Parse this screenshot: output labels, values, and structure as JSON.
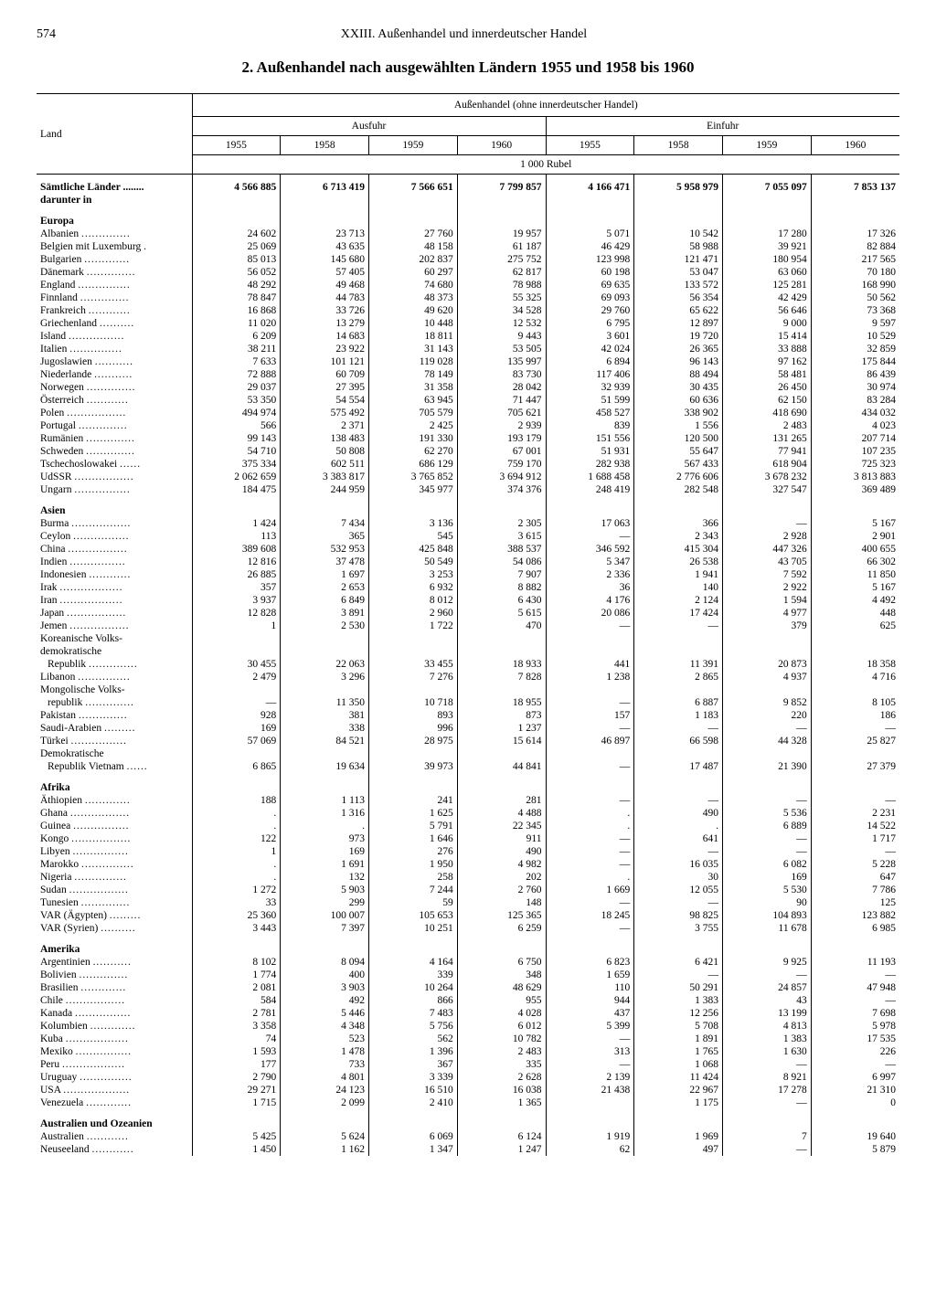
{
  "page_number": "574",
  "chapter": "XXIII. Außenhandel und innerdeutscher Handel",
  "title": "2. Außenhandel nach ausgewählten Ländern 1955 und 1958 bis 1960",
  "group_header": "Außenhandel (ohne innerdeutscher Handel)",
  "col_land": "Land",
  "col_ausfuhr": "Ausfuhr",
  "col_einfuhr": "Einfuhr",
  "years": [
    "1955",
    "1958",
    "1959",
    "1960"
  ],
  "unit": "1 000 Rubel",
  "total_label": "Sämtliche Länder",
  "darunter": "darunter in",
  "total": {
    "a": [
      "4 566 885",
      "6 713 419",
      "7 566 651",
      "7 799 857"
    ],
    "e": [
      "4 166 471",
      "5 958 979",
      "7 055 097",
      "7 853 137"
    ]
  },
  "sections": [
    {
      "name": "Europa",
      "rows": [
        {
          "l": "Albanien",
          "a": [
            "24 602",
            "23 713",
            "27 760",
            "19 957"
          ],
          "e": [
            "5 071",
            "10 542",
            "17 280",
            "17 326"
          ]
        },
        {
          "l": "Belgien mit Luxemburg",
          "a": [
            "25 069",
            "43 635",
            "48 158",
            "61 187"
          ],
          "e": [
            "46 429",
            "58 988",
            "39 921",
            "82 884"
          ]
        },
        {
          "l": "Bulgarien",
          "a": [
            "85 013",
            "145 680",
            "202 837",
            "275 752"
          ],
          "e": [
            "123 998",
            "121 471",
            "180 954",
            "217 565"
          ]
        },
        {
          "l": "Dänemark",
          "a": [
            "56 052",
            "57 405",
            "60 297",
            "62 817"
          ],
          "e": [
            "60 198",
            "53 047",
            "63 060",
            "70 180"
          ]
        },
        {
          "l": "England",
          "a": [
            "48 292",
            "49 468",
            "74 680",
            "78 988"
          ],
          "e": [
            "69 635",
            "133 572",
            "125 281",
            "168 990"
          ]
        },
        {
          "l": "Finnland",
          "a": [
            "78 847",
            "44 783",
            "48 373",
            "55 325"
          ],
          "e": [
            "69 093",
            "56 354",
            "42 429",
            "50 562"
          ]
        },
        {
          "l": "Frankreich",
          "a": [
            "16 868",
            "33 726",
            "49 620",
            "34 528"
          ],
          "e": [
            "29 760",
            "65 622",
            "56 646",
            "73 368"
          ]
        },
        {
          "l": "Griechenland",
          "a": [
            "11 020",
            "13 279",
            "10 448",
            "12 532"
          ],
          "e": [
            "6 795",
            "12 897",
            "9 000",
            "9 597"
          ]
        },
        {
          "l": "Island",
          "a": [
            "6 209",
            "14 683",
            "18 811",
            "9 443"
          ],
          "e": [
            "3 601",
            "19 720",
            "15 414",
            "10 529"
          ]
        },
        {
          "l": "Italien",
          "a": [
            "38 211",
            "23 922",
            "31 143",
            "53 505"
          ],
          "e": [
            "42 024",
            "26 365",
            "33 888",
            "32 859"
          ]
        },
        {
          "l": "Jugoslawien",
          "a": [
            "7 633",
            "101 121",
            "119 028",
            "135 997"
          ],
          "e": [
            "6 894",
            "96 143",
            "97 162",
            "175 844"
          ]
        },
        {
          "l": "Niederlande",
          "a": [
            "72 888",
            "60 709",
            "78 149",
            "83 730"
          ],
          "e": [
            "117 406",
            "88 494",
            "58 481",
            "86 439"
          ]
        },
        {
          "l": "Norwegen",
          "a": [
            "29 037",
            "27 395",
            "31 358",
            "28 042"
          ],
          "e": [
            "32 939",
            "30 435",
            "26 450",
            "30 974"
          ]
        },
        {
          "l": "Österreich",
          "a": [
            "53 350",
            "54 554",
            "63 945",
            "71 447"
          ],
          "e": [
            "51 599",
            "60 636",
            "62 150",
            "83 284"
          ]
        },
        {
          "l": "Polen",
          "a": [
            "494 974",
            "575 492",
            "705 579",
            "705 621"
          ],
          "e": [
            "458 527",
            "338 902",
            "418 690",
            "434 032"
          ]
        },
        {
          "l": "Portugal",
          "a": [
            "566",
            "2 371",
            "2 425",
            "2 939"
          ],
          "e": [
            "839",
            "1 556",
            "2 483",
            "4 023"
          ]
        },
        {
          "l": "Rumänien",
          "a": [
            "99 143",
            "138 483",
            "191 330",
            "193 179"
          ],
          "e": [
            "151 556",
            "120 500",
            "131 265",
            "207 714"
          ]
        },
        {
          "l": "Schweden",
          "a": [
            "54 710",
            "50 808",
            "62 270",
            "67 001"
          ],
          "e": [
            "51 931",
            "55 647",
            "77 941",
            "107 235"
          ]
        },
        {
          "l": "Tschechoslowakei",
          "a": [
            "375 334",
            "602 511",
            "686 129",
            "759 170"
          ],
          "e": [
            "282 938",
            "567 433",
            "618 904",
            "725 323"
          ]
        },
        {
          "l": "UdSSR",
          "a": [
            "2 062 659",
            "3 383 817",
            "3 765 852",
            "3 694 912"
          ],
          "e": [
            "1 688 458",
            "2 776 606",
            "3 678 232",
            "3 813 883"
          ]
        },
        {
          "l": "Ungarn",
          "a": [
            "184 475",
            "244 959",
            "345 977",
            "374 376"
          ],
          "e": [
            "248 419",
            "282 548",
            "327 547",
            "369 489"
          ]
        }
      ]
    },
    {
      "name": "Asien",
      "rows": [
        {
          "l": "Burma",
          "a": [
            "1 424",
            "7 434",
            "3 136",
            "2 305"
          ],
          "e": [
            "17 063",
            "366",
            "—",
            "5 167"
          ]
        },
        {
          "l": "Ceylon",
          "a": [
            "113",
            "365",
            "545",
            "3 615"
          ],
          "e": [
            "—",
            "2 343",
            "2 928",
            "2 901"
          ]
        },
        {
          "l": "China",
          "a": [
            "389 608",
            "532 953",
            "425 848",
            "388 537"
          ],
          "e": [
            "346 592",
            "415 304",
            "447 326",
            "400 655"
          ]
        },
        {
          "l": "Indien",
          "a": [
            "12 816",
            "37 478",
            "50 549",
            "54 086"
          ],
          "e": [
            "5 347",
            "26 538",
            "43 705",
            "66 302"
          ]
        },
        {
          "l": "Indonesien",
          "a": [
            "26 885",
            "1 697",
            "3 253",
            "7 907"
          ],
          "e": [
            "2 336",
            "1 941",
            "7 592",
            "11 850"
          ]
        },
        {
          "l": "Irak",
          "a": [
            "357",
            "2 653",
            "6 932",
            "8 882"
          ],
          "e": [
            "36",
            "140",
            "2 922",
            "5 167"
          ]
        },
        {
          "l": "Iran",
          "a": [
            "3 937",
            "6 849",
            "8 012",
            "6 430"
          ],
          "e": [
            "4 176",
            "2 124",
            "1 594",
            "4 492"
          ]
        },
        {
          "l": "Japan",
          "a": [
            "12 828",
            "3 891",
            "2 960",
            "5 615"
          ],
          "e": [
            "20 086",
            "17 424",
            "4 977",
            "448"
          ]
        },
        {
          "l": "Jemen",
          "a": [
            "1",
            "2 530",
            "1 722",
            "470"
          ],
          "e": [
            "—",
            "—",
            "379",
            "625"
          ]
        },
        {
          "l": "Koreanische Volks-",
          "cont": true
        },
        {
          "l": "demokratische",
          "cont": true
        },
        {
          "l": "Republik",
          "indent": true,
          "a": [
            "30 455",
            "22 063",
            "33 455",
            "18 933"
          ],
          "e": [
            "441",
            "11 391",
            "20 873",
            "18 358"
          ]
        },
        {
          "l": "Libanon",
          "a": [
            "2 479",
            "3 296",
            "7 276",
            "7 828"
          ],
          "e": [
            "1 238",
            "2 865",
            "4 937",
            "4 716"
          ]
        },
        {
          "l": "Mongolische Volks-",
          "cont": true
        },
        {
          "l": "republik",
          "indent": true,
          "a": [
            "—",
            "11 350",
            "10 718",
            "18 955"
          ],
          "e": [
            "—",
            "6 887",
            "9 852",
            "8 105"
          ]
        },
        {
          "l": "Pakistan",
          "a": [
            "928",
            "381",
            "893",
            "873"
          ],
          "e": [
            "157",
            "1 183",
            "220",
            "186"
          ]
        },
        {
          "l": "Saudi-Arabien",
          "a": [
            "169",
            "338",
            "996",
            "1 237"
          ],
          "e": [
            "—",
            "—",
            "—",
            "—"
          ]
        },
        {
          "l": "Türkei",
          "a": [
            "57 069",
            "84 521",
            "28 975",
            "15 614"
          ],
          "e": [
            "46 897",
            "66 598",
            "44 328",
            "25 827"
          ]
        },
        {
          "l": "Demokratische",
          "cont": true
        },
        {
          "l": "Republik Vietnam",
          "indent": true,
          "a": [
            "6 865",
            "19 634",
            "39 973",
            "44 841"
          ],
          "e": [
            "—",
            "17 487",
            "21 390",
            "27 379"
          ]
        }
      ]
    },
    {
      "name": "Afrika",
      "rows": [
        {
          "l": "Äthiopien",
          "a": [
            "188",
            "1 113",
            "241",
            "281"
          ],
          "e": [
            "—",
            "—",
            "—",
            "—"
          ]
        },
        {
          "l": "Ghana",
          "a": [
            ".",
            "1 316",
            "1 625",
            "4 488"
          ],
          "e": [
            ".",
            "490",
            "5 536",
            "2 231"
          ]
        },
        {
          "l": "Guinea",
          "a": [
            ".",
            ".",
            "5 791",
            "22 345"
          ],
          "e": [
            ".",
            ".",
            "6 889",
            "14 522"
          ]
        },
        {
          "l": "Kongo",
          "a": [
            "122",
            "973",
            "1 646",
            "911"
          ],
          "e": [
            "—",
            "641",
            "—",
            "1 717"
          ]
        },
        {
          "l": "Libyen",
          "a": [
            "1",
            "169",
            "276",
            "490"
          ],
          "e": [
            "—",
            "—",
            "—",
            "—"
          ]
        },
        {
          "l": "Marokko",
          "a": [
            ".",
            "1 691",
            "1 950",
            "4 982"
          ],
          "e": [
            "—",
            "16 035",
            "6 082",
            "5 228"
          ]
        },
        {
          "l": "Nigeria",
          "a": [
            ".",
            "132",
            "258",
            "202"
          ],
          "e": [
            ".",
            "30",
            "169",
            "647"
          ]
        },
        {
          "l": "Sudan",
          "a": [
            "1 272",
            "5 903",
            "7 244",
            "2 760"
          ],
          "e": [
            "1 669",
            "12 055",
            "5 530",
            "7 786"
          ]
        },
        {
          "l": "Tunesien",
          "a": [
            "33",
            "299",
            "59",
            "148"
          ],
          "e": [
            "—",
            "—",
            "90",
            "125"
          ]
        },
        {
          "l": "VAR (Ägypten)",
          "a": [
            "25 360",
            "100 007",
            "105 653",
            "125 365"
          ],
          "e": [
            "18 245",
            "98 825",
            "104 893",
            "123 882"
          ]
        },
        {
          "l": "VAR (Syrien)",
          "a": [
            "3 443",
            "7 397",
            "10 251",
            "6 259"
          ],
          "e": [
            "—",
            "3 755",
            "11 678",
            "6 985"
          ]
        }
      ]
    },
    {
      "name": "Amerika",
      "rows": [
        {
          "l": "Argentinien",
          "a": [
            "8 102",
            "8 094",
            "4 164",
            "6 750"
          ],
          "e": [
            "6 823",
            "6 421",
            "9 925",
            "11 193"
          ]
        },
        {
          "l": "Bolivien",
          "a": [
            "1 774",
            "400",
            "339",
            "348"
          ],
          "e": [
            "1 659",
            "—",
            "—",
            "—"
          ]
        },
        {
          "l": "Brasilien",
          "a": [
            "2 081",
            "3 903",
            "10 264",
            "48 629"
          ],
          "e": [
            "110",
            "50 291",
            "24 857",
            "47 948"
          ]
        },
        {
          "l": "Chile",
          "a": [
            "584",
            "492",
            "866",
            "955"
          ],
          "e": [
            "944",
            "1 383",
            "43",
            "—"
          ]
        },
        {
          "l": "Kanada",
          "a": [
            "2 781",
            "5 446",
            "7 483",
            "4 028"
          ],
          "e": [
            "437",
            "12 256",
            "13 199",
            "7 698"
          ]
        },
        {
          "l": "Kolumbien",
          "a": [
            "3 358",
            "4 348",
            "5 756",
            "6 012"
          ],
          "e": [
            "5 399",
            "5 708",
            "4 813",
            "5 978"
          ]
        },
        {
          "l": "Kuba",
          "a": [
            "74",
            "523",
            "562",
            "10 782"
          ],
          "e": [
            "—",
            "1 891",
            "1 383",
            "17 535"
          ]
        },
        {
          "l": "Mexiko",
          "a": [
            "1 593",
            "1 478",
            "1 396",
            "2 483"
          ],
          "e": [
            "313",
            "1 765",
            "1 630",
            "226"
          ]
        },
        {
          "l": "Peru",
          "a": [
            "177",
            "733",
            "367",
            "335"
          ],
          "e": [
            "—",
            "1 068",
            "—",
            "—"
          ]
        },
        {
          "l": "Uruguay",
          "a": [
            "2 790",
            "4 801",
            "3 339",
            "2 628"
          ],
          "e": [
            "2 139",
            "11 424",
            "8 921",
            "6 997"
          ]
        },
        {
          "l": "USA",
          "a": [
            "29 271",
            "24 123",
            "16 510",
            "16 038"
          ],
          "e": [
            "21 438",
            "22 967",
            "17 278",
            "21 310"
          ]
        },
        {
          "l": "Venezuela",
          "a": [
            "1 715",
            "2 099",
            "2 410",
            "1 365"
          ],
          "e": [
            "",
            "1 175",
            "—",
            "0"
          ]
        }
      ]
    },
    {
      "name": "Australien und Ozeanien",
      "rows": [
        {
          "l": "Australien",
          "a": [
            "5 425",
            "5 624",
            "6 069",
            "6 124"
          ],
          "e": [
            "1 919",
            "1 969",
            "7",
            "19 640"
          ]
        },
        {
          "l": "Neuseeland",
          "a": [
            "1 450",
            "1 162",
            "1 347",
            "1 247"
          ],
          "e": [
            "62",
            "497",
            "—",
            "5 879"
          ]
        }
      ]
    }
  ]
}
